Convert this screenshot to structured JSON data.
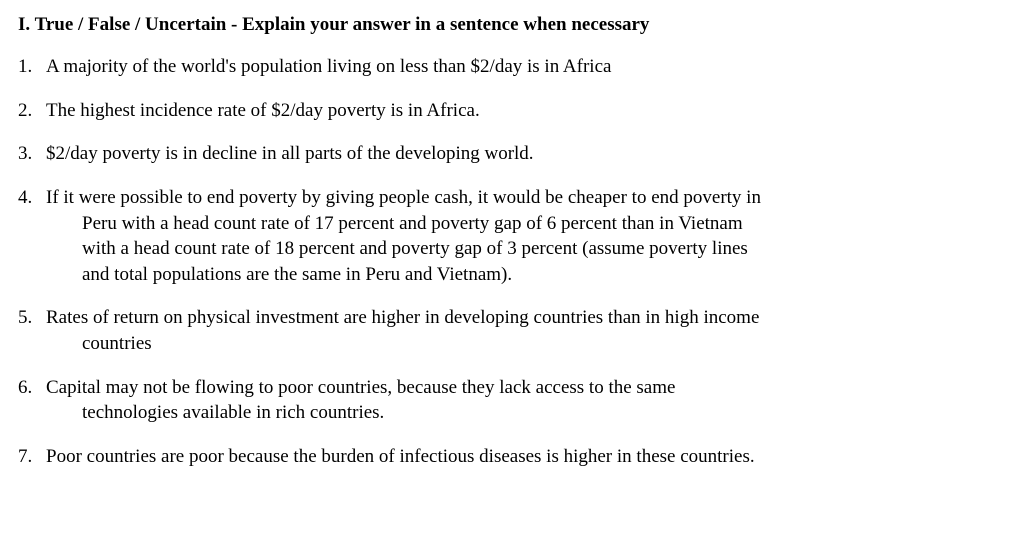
{
  "header": {
    "roman": "I.",
    "title": "True / False / Uncertain - Explain your answer in a sentence when necessary"
  },
  "questions": [
    {
      "number": "1.",
      "text": "A majority of the world's population living on less than $2/day is in Africa"
    },
    {
      "number": "2.",
      "text": "The highest incidence rate of $2/day poverty is in Africa."
    },
    {
      "number": "3.",
      "text": "$2/day poverty is in decline in all parts of the developing world."
    },
    {
      "number": "4.",
      "firstLine": "If it were possible to end poverty by giving people cash, it would be cheaper to end poverty in",
      "cont1": "Peru with a head count rate of 17 percent and poverty gap of 6 percent than in Vietnam",
      "cont2": "with a head count rate of 18 percent and poverty gap of 3 percent (assume poverty lines",
      "cont3": "and total populations are the same in Peru and Vietnam)."
    },
    {
      "number": "5.",
      "firstLine": "Rates of return on physical investment are higher in developing countries than in high income",
      "cont1": "countries"
    },
    {
      "number": "6.",
      "firstLine": "Capital may not be flowing to poor countries, because they lack access to the same",
      "cont1": "technologies available in rich countries."
    },
    {
      "number": "7.",
      "text": "Poor countries are poor because the burden of infectious diseases is higher in these countries."
    }
  ]
}
